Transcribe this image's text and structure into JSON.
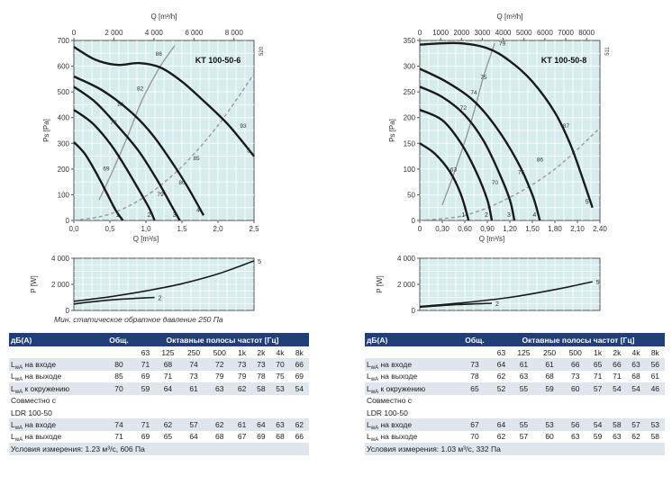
{
  "chart_data": [
    {
      "type": "line",
      "title": "KT 100-50-6",
      "side_code": "520",
      "xlabel": "Q [m³/s]",
      "xlabel_top": "Q [m³/h]",
      "ylabel": "Ps [Pa]",
      "xlim": [
        0,
        2.5
      ],
      "ylim": [
        0,
        700
      ],
      "xticks": [
        0,
        0.5,
        1.0,
        1.5,
        2.0,
        2.5
      ],
      "xtick_labels": [
        "0,0",
        "0,5",
        "1,0",
        "1,5",
        "2,0",
        "2,5"
      ],
      "yticks": [
        0,
        100,
        200,
        300,
        400,
        500,
        600,
        700
      ],
      "xticks_top": [
        0,
        2000,
        4000,
        6000,
        8000
      ],
      "xtick_top_labels": [
        "0",
        "2 000",
        "4 000",
        "6 000",
        "8 000"
      ],
      "series": [
        {
          "name": "1",
          "x": [
            0,
            0.15,
            0.3,
            0.45,
            0.58,
            0.68
          ],
          "y": [
            305,
            260,
            190,
            110,
            40,
            0
          ]
        },
        {
          "name": "2",
          "x": [
            0,
            0.25,
            0.5,
            0.7,
            0.9,
            1.05,
            1.12
          ],
          "y": [
            430,
            380,
            300,
            215,
            120,
            45,
            0
          ]
        },
        {
          "name": "3",
          "x": [
            0,
            0.3,
            0.6,
            0.9,
            1.15,
            1.35,
            1.47
          ],
          "y": [
            520,
            460,
            370,
            270,
            160,
            60,
            0
          ]
        },
        {
          "name": "4",
          "x": [
            0,
            0.4,
            0.8,
            1.1,
            1.4,
            1.6,
            1.8
          ],
          "y": [
            560,
            505,
            420,
            330,
            210,
            120,
            20
          ]
        },
        {
          "name": "5",
          "x": [
            0,
            0.3,
            0.6,
            0.9,
            1.2,
            1.5,
            1.8,
            2.1,
            2.3,
            2.5
          ],
          "y": [
            675,
            625,
            605,
            612,
            595,
            540,
            465,
            385,
            320,
            250
          ]
        }
      ],
      "system_curve": {
        "x": [
          0,
          0.5,
          1.0,
          1.5,
          2.0,
          2.5
        ],
        "y": [
          0,
          25,
          95,
          210,
          370,
          570
        ]
      },
      "efficiency_curve": {
        "x": [
          0.35,
          0.55,
          0.75,
          0.95,
          1.2,
          1.4
        ],
        "y": [
          80,
          200,
          330,
          470,
          600,
          680
        ]
      },
      "annotations": [
        "86",
        "82",
        "81",
        "78",
        "69",
        "79",
        "85",
        "80",
        "93"
      ],
      "legend": ""
    },
    {
      "type": "line",
      "title": "P [W]",
      "xlabel": "",
      "ylabel": "P [W]",
      "xlim": [
        0,
        2.5
      ],
      "ylim": [
        0,
        4000
      ],
      "yticks": [
        0,
        2000,
        4000
      ],
      "ytick_labels": [
        "0",
        "2 000",
        "4 000"
      ],
      "series": [
        {
          "name": "2",
          "x": [
            0,
            0.5,
            1.12
          ],
          "y": [
            500,
            800,
            1000
          ]
        },
        {
          "name": "5",
          "x": [
            0,
            0.5,
            1.0,
            1.5,
            2.0,
            2.5
          ],
          "y": [
            700,
            1050,
            1500,
            2050,
            2800,
            3800
          ]
        }
      ]
    },
    {
      "type": "line",
      "title": "KT 100-50-8",
      "side_code": "511",
      "xlabel": "Q [m³/s]",
      "xlabel_top": "Q [m³/h]",
      "ylabel": "Ps [Pa]",
      "xlim": [
        0,
        2.4
      ],
      "ylim": [
        0,
        350
      ],
      "xticks": [
        0,
        0.3,
        0.6,
        0.9,
        1.2,
        1.5,
        1.8,
        2.1,
        2.4
      ],
      "xtick_labels": [
        "0",
        "0,30",
        "0,60",
        "0,90",
        "1,20",
        "1,50",
        "1,80",
        "2,10",
        "2,40"
      ],
      "yticks": [
        0,
        50,
        100,
        150,
        200,
        250,
        300,
        350
      ],
      "xticks_top": [
        0,
        1000,
        2000,
        3000,
        4000,
        5000,
        6000,
        7000,
        8000
      ],
      "xtick_top_labels": [
        "0",
        "1000",
        "2000",
        "3000",
        "4000",
        "5000",
        "6000",
        "7000",
        "8000"
      ],
      "series": [
        {
          "name": "1",
          "x": [
            0,
            0.2,
            0.4,
            0.55,
            0.65
          ],
          "y": [
            150,
            130,
            95,
            50,
            0
          ]
        },
        {
          "name": "2",
          "x": [
            0,
            0.3,
            0.55,
            0.75,
            0.9,
            0.96
          ],
          "y": [
            215,
            195,
            150,
            95,
            40,
            0
          ]
        },
        {
          "name": "3",
          "x": [
            0,
            0.3,
            0.6,
            0.85,
            1.05,
            1.2,
            1.26
          ],
          "y": [
            260,
            240,
            205,
            155,
            95,
            40,
            0
          ]
        },
        {
          "name": "4",
          "x": [
            0,
            0.35,
            0.7,
            1.0,
            1.3,
            1.5,
            1.6
          ],
          "y": [
            295,
            270,
            235,
            185,
            115,
            50,
            0
          ]
        },
        {
          "name": "5",
          "x": [
            0,
            0.5,
            0.9,
            1.2,
            1.5,
            1.8,
            2.0,
            2.15,
            2.3
          ],
          "y": [
            342,
            345,
            335,
            310,
            270,
            210,
            150,
            90,
            25
          ]
        }
      ],
      "system_curve": {
        "x": [
          0,
          0.6,
          1.2,
          1.8,
          2.4
        ],
        "y": [
          0,
          10,
          45,
          100,
          180
        ]
      },
      "efficiency_curve": {
        "x": [
          0.3,
          0.5,
          0.7,
          0.85,
          1.0
        ],
        "y": [
          30,
          110,
          200,
          280,
          345
        ]
      },
      "annotations": [
        "79",
        "75",
        "74",
        "72",
        "63",
        "70",
        "75",
        "86",
        "87"
      ],
      "legend": ""
    },
    {
      "type": "line",
      "title": "P [W]",
      "xlabel": "",
      "ylabel": "P [W]",
      "xlim": [
        0,
        2.4
      ],
      "ylim": [
        0,
        4000
      ],
      "yticks": [
        0,
        2000,
        4000
      ],
      "ytick_labels": [
        "0",
        "2 000",
        "4 000"
      ],
      "series": [
        {
          "name": "2",
          "x": [
            0,
            0.5,
            0.96
          ],
          "y": [
            250,
            450,
            550
          ]
        },
        {
          "name": "5",
          "x": [
            0,
            0.6,
            1.2,
            1.8,
            2.3
          ],
          "y": [
            300,
            600,
            1000,
            1600,
            2200
          ]
        }
      ]
    }
  ],
  "note": "Мин. статическое обратное давление 250 Па",
  "tables": [
    {
      "header": {
        "db": "дБ(A)",
        "total": "Общ.",
        "bands": "Октавные полосы частот [Гц]"
      },
      "freqs": [
        "63",
        "125",
        "250",
        "500",
        "1k",
        "2k",
        "4k",
        "8k"
      ],
      "rows": [
        {
          "label": "L",
          "sub": "wA",
          "rest": " на входе",
          "total": "80",
          "values": [
            "71",
            "68",
            "74",
            "72",
            "73",
            "73",
            "70",
            "66"
          ]
        },
        {
          "label": "L",
          "sub": "wA",
          "rest": " на выходе",
          "total": "85",
          "values": [
            "69",
            "71",
            "73",
            "79",
            "79",
            "78",
            "75",
            "69"
          ]
        },
        {
          "label": "L",
          "sub": "wA",
          "rest": " к окружению",
          "total": "70",
          "values": [
            "59",
            "64",
            "61",
            "63",
            "62",
            "58",
            "53",
            "54"
          ]
        }
      ],
      "combo_1": "Совместно с",
      "combo_2": "LDR 100-50",
      "rows2": [
        {
          "label": "L",
          "sub": "wA",
          "rest": " на входе",
          "total": "74",
          "values": [
            "71",
            "62",
            "57",
            "62",
            "61",
            "64",
            "63",
            "62"
          ]
        },
        {
          "label": "L",
          "sub": "wA",
          "rest": " на выходе",
          "total": "71",
          "values": [
            "69",
            "65",
            "64",
            "68",
            "67",
            "69",
            "68",
            "66"
          ]
        }
      ],
      "footer": "Условия измерения: 1.23 м³/с, 606 Па"
    },
    {
      "header": {
        "db": "дБ(A)",
        "total": "Общ.",
        "bands": "Октавные полосы частот [Гц]"
      },
      "freqs": [
        "63",
        "125",
        "250",
        "500",
        "1k",
        "2k",
        "4k",
        "8k"
      ],
      "rows": [
        {
          "label": "L",
          "sub": "wA",
          "rest": " на входе",
          "total": "73",
          "values": [
            "64",
            "61",
            "61",
            "66",
            "65",
            "66",
            "63",
            "56"
          ]
        },
        {
          "label": "L",
          "sub": "wA",
          "rest": " на выходе",
          "total": "78",
          "values": [
            "62",
            "63",
            "68",
            "73",
            "71",
            "71",
            "68",
            "61"
          ]
        },
        {
          "label": "L",
          "sub": "wA",
          "rest": " к окружению",
          "total": "65",
          "values": [
            "52",
            "55",
            "59",
            "60",
            "57",
            "54",
            "54",
            "46"
          ]
        }
      ],
      "combo_1": "Совместно с",
      "combo_2": "LDR 100-50",
      "rows2": [
        {
          "label": "L",
          "sub": "wA",
          "rest": " на входе",
          "total": "67",
          "values": [
            "64",
            "55",
            "53",
            "56",
            "54",
            "58",
            "57",
            "53"
          ]
        },
        {
          "label": "L",
          "sub": "wA",
          "rest": " на выходе",
          "total": "70",
          "values": [
            "62",
            "57",
            "60",
            "63",
            "59",
            "63",
            "62",
            "58"
          ]
        }
      ],
      "footer": "Условия измерения: 1.03 м³/с, 332 Па"
    }
  ]
}
